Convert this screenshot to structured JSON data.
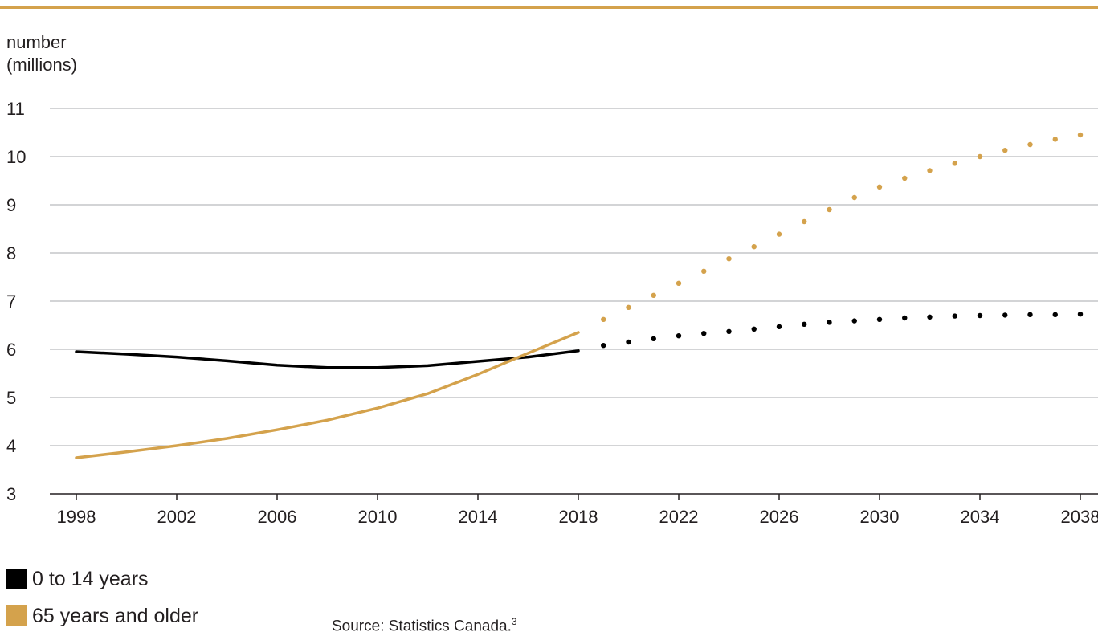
{
  "chart_data": {
    "type": "line",
    "ylabel_lines": [
      "number",
      "(millions)"
    ],
    "x_ticks": [
      1998,
      2002,
      2006,
      2010,
      2014,
      2018,
      2022,
      2026,
      2030,
      2034,
      2038
    ],
    "y_ticks": [
      3,
      4,
      5,
      6,
      7,
      8,
      9,
      10,
      11
    ],
    "xlim": [
      1998,
      2038
    ],
    "ylim": [
      3,
      11
    ],
    "grid": "horizontal",
    "series": [
      {
        "name": "0 to 14 years",
        "color": "#000000",
        "historical": {
          "x": [
            1998,
            2000,
            2002,
            2004,
            2006,
            2008,
            2010,
            2012,
            2014,
            2016,
            2018
          ],
          "y": [
            5.95,
            5.9,
            5.84,
            5.76,
            5.67,
            5.62,
            5.62,
            5.66,
            5.75,
            5.84,
            5.97
          ]
        },
        "projected": {
          "x": [
            2019,
            2020,
            2021,
            2022,
            2023,
            2024,
            2025,
            2026,
            2027,
            2028,
            2029,
            2030,
            2031,
            2032,
            2033,
            2034,
            2035,
            2036,
            2037,
            2038
          ],
          "y": [
            6.08,
            6.15,
            6.22,
            6.28,
            6.33,
            6.37,
            6.42,
            6.47,
            6.52,
            6.56,
            6.59,
            6.62,
            6.65,
            6.67,
            6.69,
            6.7,
            6.71,
            6.72,
            6.72,
            6.73
          ]
        }
      },
      {
        "name": "65 years and older",
        "color": "#d4a24c",
        "historical": {
          "x": [
            1998,
            2000,
            2002,
            2004,
            2006,
            2008,
            2010,
            2012,
            2014,
            2016,
            2018
          ],
          "y": [
            3.75,
            3.87,
            4.0,
            4.15,
            4.33,
            4.53,
            4.78,
            5.08,
            5.48,
            5.92,
            6.35
          ]
        },
        "projected": {
          "x": [
            2019,
            2020,
            2021,
            2022,
            2023,
            2024,
            2025,
            2026,
            2027,
            2028,
            2029,
            2030,
            2031,
            2032,
            2033,
            2034,
            2035,
            2036,
            2037,
            2038
          ],
          "y": [
            6.62,
            6.87,
            7.12,
            7.37,
            7.62,
            7.88,
            8.13,
            8.39,
            8.65,
            8.9,
            9.15,
            9.37,
            9.55,
            9.71,
            9.86,
            10.0,
            10.13,
            10.25,
            10.36,
            10.45
          ]
        }
      }
    ]
  },
  "source_note": "Source: Statistics Canada.",
  "source_note_sup": "3"
}
